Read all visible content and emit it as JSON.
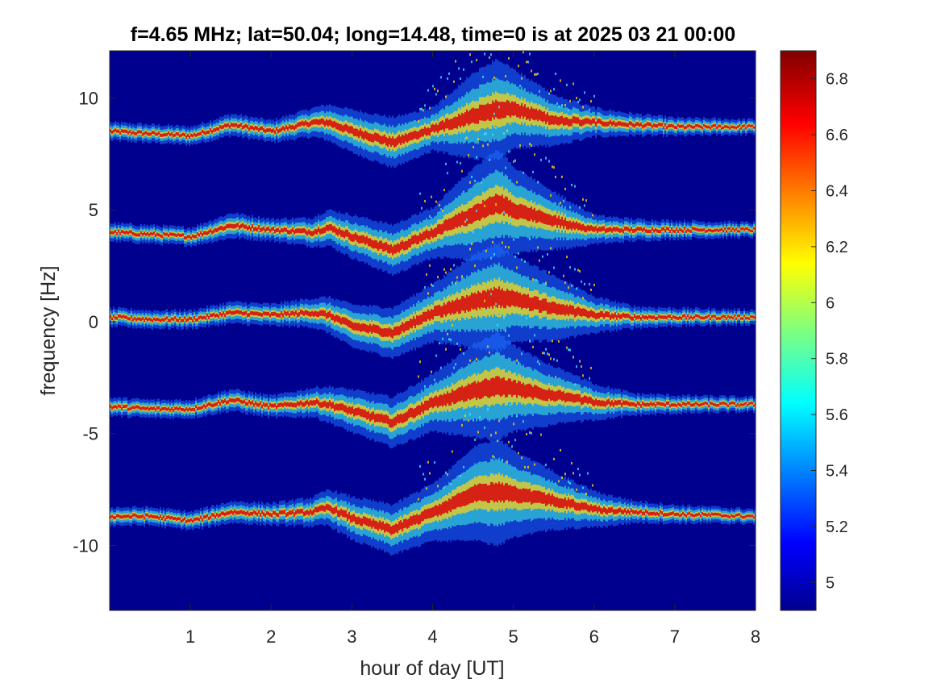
{
  "chart_data": {
    "type": "heatmap",
    "title": "f=4.65 MHz;  lat=50.04; long=14.48, time=0 is at 2025 03 21 00:00",
    "xlabel": "hour of day [UT]",
    "ylabel": "frequency [Hz]",
    "xlim": [
      0,
      8
    ],
    "ylim": [
      -12.9,
      12.1
    ],
    "x_ticks": [
      1,
      2,
      3,
      4,
      5,
      6,
      7,
      8
    ],
    "x_tick_labels": [
      "1",
      "2",
      "3",
      "4",
      "5",
      "6",
      "7",
      "8"
    ],
    "y_ticks": [
      10,
      5,
      0,
      -5,
      -10
    ],
    "y_tick_labels": [
      "10",
      "5",
      "0",
      "-5",
      "-10"
    ],
    "colormap": "jet",
    "colorbar": {
      "range": [
        4.9,
        6.9
      ],
      "ticks": [
        6.8,
        6.6,
        6.4,
        6.2,
        6.0,
        5.8,
        5.6,
        5.4,
        5.2,
        5.0
      ],
      "tick_labels": [
        "6.8",
        "6.6",
        "6.4",
        "6.2",
        "6",
        "5.8",
        "5.6",
        "5.4",
        "5.2",
        "5"
      ],
      "placement": "right"
    },
    "background_color": "#00008f",
    "grid": false,
    "series": [
      {
        "hours": [
          0,
          0.5,
          1.0,
          1.5,
          2.0,
          2.5,
          2.7,
          3.0,
          3.5,
          4.0,
          4.5,
          4.8,
          5.0,
          5.5,
          6.0,
          6.5,
          7.0,
          8.0
        ],
        "freq_hz": [
          8.5,
          8.4,
          8.3,
          8.8,
          8.5,
          8.9,
          8.9,
          8.5,
          8.0,
          8.6,
          9.2,
          9.5,
          9.5,
          9.0,
          8.9,
          8.8,
          8.7,
          8.7
        ],
        "spread_hz": [
          0.25,
          0.25,
          0.25,
          0.3,
          0.3,
          0.4,
          0.5,
          0.6,
          0.7,
          0.6,
          1.2,
          1.4,
          1.1,
          0.7,
          0.4,
          0.3,
          0.25,
          0.2
        ]
      },
      {
        "hours": [
          0,
          0.5,
          1.0,
          1.5,
          2.0,
          2.5,
          2.7,
          3.0,
          3.5,
          4.0,
          4.5,
          4.8,
          5.0,
          5.5,
          6.0,
          6.5,
          7.0,
          8.0
        ],
        "freq_hz": [
          4.0,
          3.9,
          3.8,
          4.3,
          4.1,
          4.0,
          4.2,
          3.8,
          3.2,
          4.0,
          4.8,
          5.3,
          5.0,
          4.5,
          4.1,
          4.1,
          4.1,
          4.1
        ],
        "spread_hz": [
          0.25,
          0.25,
          0.25,
          0.35,
          0.3,
          0.4,
          0.5,
          0.6,
          0.7,
          0.7,
          1.3,
          1.5,
          1.2,
          0.8,
          0.4,
          0.3,
          0.25,
          0.2
        ]
      },
      {
        "hours": [
          0,
          0.5,
          1.0,
          1.5,
          2.0,
          2.5,
          2.7,
          3.0,
          3.5,
          4.0,
          4.5,
          4.8,
          5.0,
          5.5,
          6.0,
          6.5,
          7.0,
          8.0
        ],
        "freq_hz": [
          0.2,
          0.1,
          0.1,
          0.4,
          0.3,
          0.4,
          0.3,
          -0.2,
          -0.5,
          0.4,
          0.9,
          1.1,
          1.0,
          0.6,
          0.3,
          0.2,
          0.2,
          0.2
        ],
        "spread_hz": [
          0.25,
          0.25,
          0.25,
          0.3,
          0.3,
          0.4,
          0.5,
          0.6,
          0.7,
          0.8,
          1.3,
          1.5,
          1.2,
          0.9,
          0.5,
          0.3,
          0.25,
          0.2
        ]
      },
      {
        "hours": [
          0,
          0.5,
          1.0,
          1.5,
          2.0,
          2.5,
          2.7,
          3.0,
          3.5,
          4.0,
          4.5,
          4.8,
          5.0,
          5.5,
          6.0,
          6.5,
          7.0,
          8.0
        ],
        "freq_hz": [
          -3.8,
          -3.9,
          -3.9,
          -3.5,
          -3.8,
          -3.6,
          -3.7,
          -4.0,
          -4.5,
          -3.6,
          -3.1,
          -2.9,
          -3.0,
          -3.3,
          -3.6,
          -3.7,
          -3.7,
          -3.7
        ],
        "spread_hz": [
          0.25,
          0.25,
          0.25,
          0.3,
          0.3,
          0.4,
          0.5,
          0.6,
          0.7,
          0.8,
          1.3,
          1.5,
          1.2,
          0.8,
          0.5,
          0.3,
          0.25,
          0.2
        ]
      },
      {
        "hours": [
          0,
          0.5,
          1.0,
          1.5,
          2.0,
          2.5,
          2.7,
          3.0,
          3.5,
          4.0,
          4.5,
          4.8,
          5.0,
          5.5,
          6.0,
          6.5,
          7.0,
          8.0
        ],
        "freq_hz": [
          -8.7,
          -8.7,
          -8.9,
          -8.5,
          -8.6,
          -8.5,
          -8.3,
          -8.8,
          -9.3,
          -8.5,
          -7.7,
          -7.6,
          -7.7,
          -8.0,
          -8.4,
          -8.5,
          -8.6,
          -8.7
        ],
        "spread_hz": [
          0.25,
          0.25,
          0.25,
          0.3,
          0.3,
          0.4,
          0.5,
          0.6,
          0.7,
          0.8,
          1.3,
          1.5,
          1.2,
          0.8,
          0.5,
          0.3,
          0.25,
          0.2
        ]
      }
    ]
  }
}
